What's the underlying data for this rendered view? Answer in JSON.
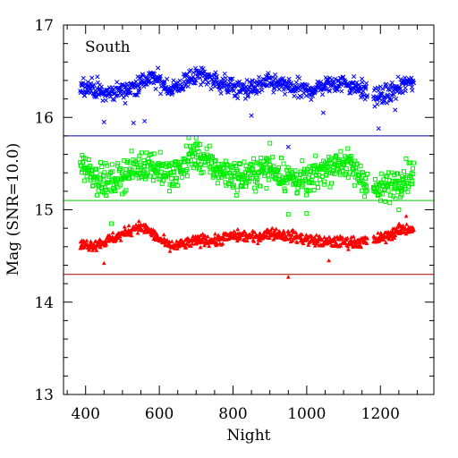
{
  "chart_data": {
    "type": "scatter",
    "title": "",
    "panel_label": "South",
    "xlabel": "Night",
    "ylabel": "Mag (SNR=10.0)",
    "xlim": [
      340,
      1345
    ],
    "ylim": [
      13,
      17
    ],
    "xticks": [
      400,
      600,
      800,
      1000,
      1200
    ],
    "yticks": [
      13,
      14,
      15,
      16,
      17
    ],
    "x_minor_step": 50,
    "y_minor_step": 0.2,
    "grid": false,
    "legend": "none",
    "x_range_points": [
      385,
      1290
    ],
    "gaps": [
      [
        1165,
        1180
      ]
    ],
    "series": [
      {
        "color": "#0000ff",
        "marker": "cross",
        "trend_x": [
          385,
          420,
          450,
          480,
          510,
          540,
          570,
          600,
          630,
          660,
          690,
          720,
          750,
          780,
          820,
          860,
          900,
          950,
          1000,
          1050,
          1100,
          1150,
          1190,
          1220,
          1250,
          1290
        ],
        "trend_y": [
          16.35,
          16.32,
          16.25,
          16.28,
          16.3,
          16.35,
          16.42,
          16.4,
          16.3,
          16.35,
          16.45,
          16.45,
          16.4,
          16.35,
          16.3,
          16.32,
          16.38,
          16.33,
          16.28,
          16.35,
          16.38,
          16.3,
          16.22,
          16.25,
          16.32,
          16.4
        ],
        "scatter": 0.1,
        "outliers": [
          [
            450,
            15.95
          ],
          [
            530,
            15.94
          ],
          [
            560,
            15.96
          ],
          [
            850,
            16.02
          ],
          [
            950,
            15.68
          ],
          [
            1045,
            16.05
          ],
          [
            1195,
            15.88
          ],
          [
            1240,
            16.08
          ]
        ],
        "limit_mag": 15.8,
        "limit_color": "#0000aa"
      },
      {
        "color": "#00ee00",
        "marker": "square",
        "trend_x": [
          385,
          420,
          450,
          480,
          510,
          540,
          570,
          600,
          630,
          660,
          690,
          720,
          750,
          780,
          820,
          860,
          900,
          950,
          1000,
          1050,
          1100,
          1150,
          1190,
          1220,
          1250,
          1290
        ],
        "trend_y": [
          15.5,
          15.4,
          15.3,
          15.32,
          15.4,
          15.45,
          15.5,
          15.45,
          15.35,
          15.45,
          15.6,
          15.55,
          15.45,
          15.4,
          15.35,
          15.4,
          15.45,
          15.35,
          15.3,
          15.45,
          15.52,
          15.35,
          15.2,
          15.25,
          15.32,
          15.4
        ],
        "scatter": 0.16,
        "outliers": [
          [
            470,
            14.85
          ],
          [
            680,
            15.78
          ],
          [
            700,
            15.78
          ],
          [
            900,
            15.72
          ],
          [
            950,
            14.95
          ],
          [
            1000,
            14.96
          ],
          [
            1250,
            15.0
          ]
        ],
        "limit_mag": 15.1,
        "limit_color": "#00cc00"
      },
      {
        "color": "#ff0000",
        "marker": "triangle",
        "trend_x": [
          385,
          420,
          450,
          480,
          510,
          540,
          570,
          600,
          630,
          660,
          690,
          720,
          750,
          780,
          820,
          860,
          900,
          950,
          1000,
          1050,
          1100,
          1150,
          1190,
          1220,
          1250,
          1290
        ],
        "trend_y": [
          14.62,
          14.62,
          14.65,
          14.7,
          14.75,
          14.82,
          14.78,
          14.68,
          14.6,
          14.62,
          14.65,
          14.68,
          14.66,
          14.7,
          14.72,
          14.7,
          14.75,
          14.72,
          14.68,
          14.65,
          14.65,
          14.65,
          14.68,
          14.72,
          14.78,
          14.8
        ],
        "scatter": 0.06,
        "outliers": [
          [
            450,
            14.42
          ],
          [
            950,
            14.27
          ],
          [
            1060,
            14.45
          ],
          [
            1270,
            14.93
          ]
        ],
        "limit_mag": 14.3,
        "limit_color": "#aa0000"
      }
    ]
  }
}
